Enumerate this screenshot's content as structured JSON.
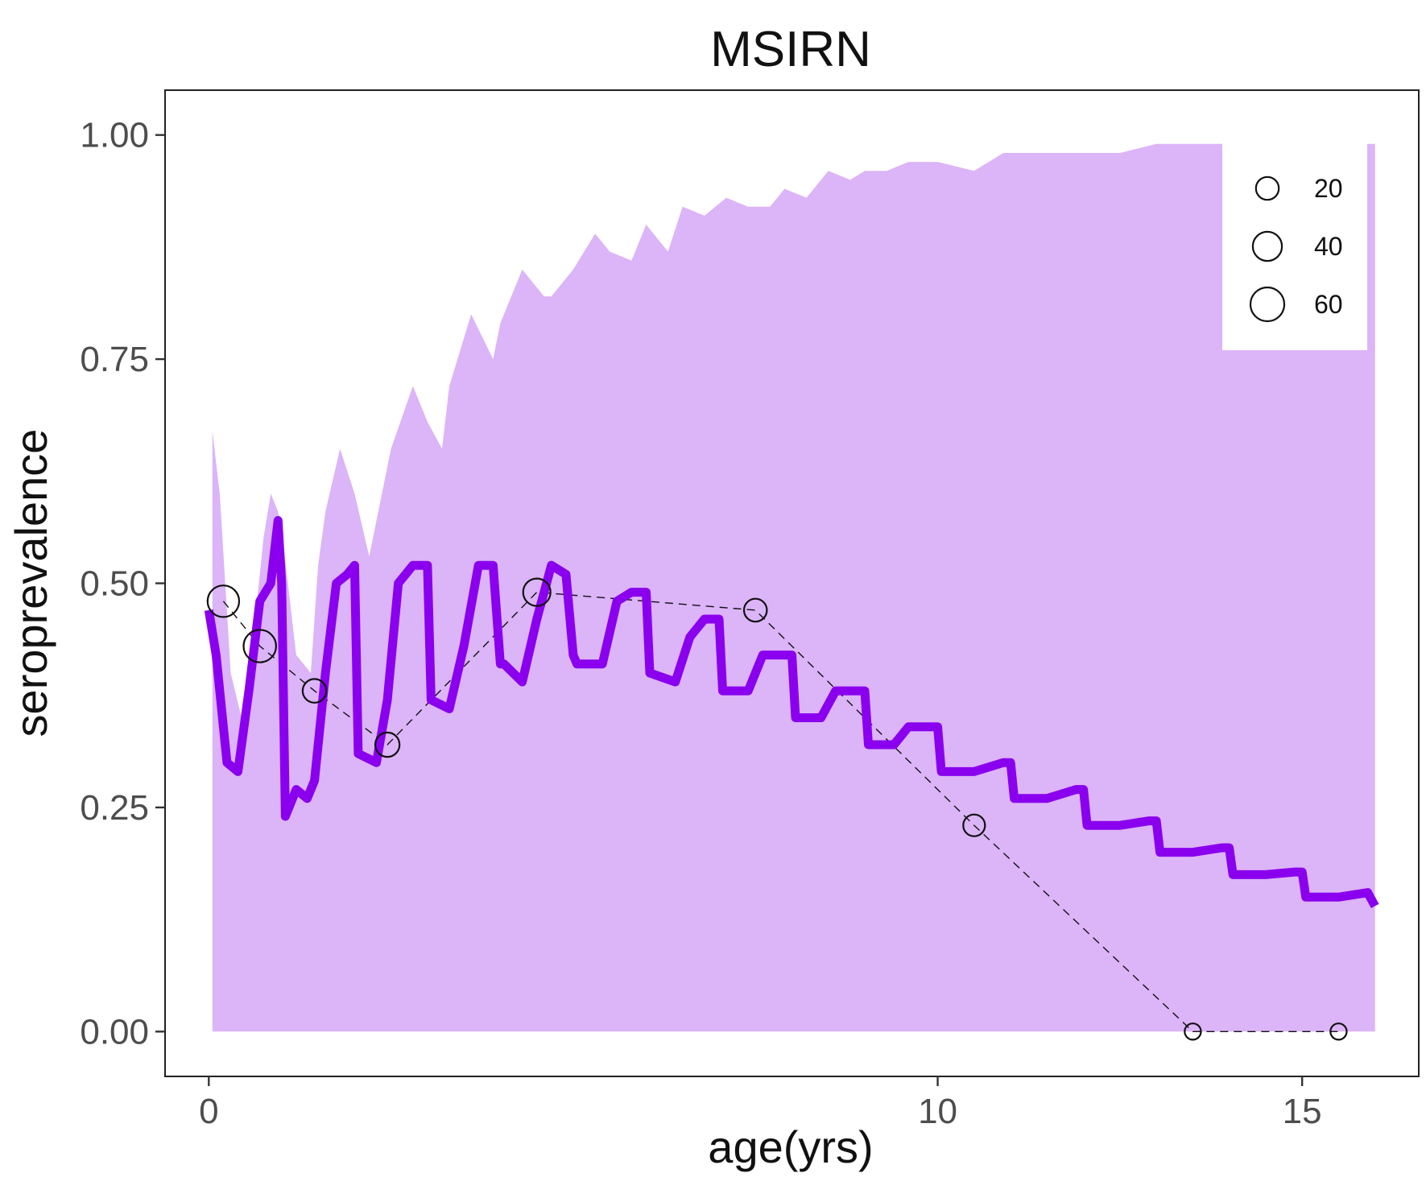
{
  "chart_data": {
    "type": "line",
    "title": "MSIRN",
    "xlabel": "age(yrs)",
    "ylabel": "seroprevalence",
    "xlim": [
      -0.6,
      16.6
    ],
    "ylim": [
      -0.05,
      1.05
    ],
    "x_ticks": [
      0,
      10,
      15
    ],
    "x_tick_labels": [
      "0",
      "10",
      "15"
    ],
    "y_ticks": [
      0,
      0.25,
      0.5,
      0.75,
      1.0
    ],
    "y_tick_labels": [
      "0.00",
      "0.25",
      "0.50",
      "0.75",
      "1.00"
    ],
    "grid": false,
    "legend": {
      "placement": "top-right",
      "entries": [
        {
          "label": "20",
          "size": 20
        },
        {
          "label": "40",
          "size": 40
        },
        {
          "label": "60",
          "size": 60
        }
      ]
    },
    "colors": {
      "model_line": "#8a00ee",
      "ribbon": "#dcb4f8",
      "points": "#111111"
    },
    "series": [
      {
        "role": "ribbon",
        "x": [
          0.05,
          0.15,
          0.3,
          0.45,
          0.6,
          0.75,
          0.85,
          0.95,
          1.0,
          1.2,
          1.4,
          1.5,
          1.6,
          1.8,
          2.0,
          2.2,
          2.45,
          2.5,
          2.8,
          3.0,
          3.2,
          3.3,
          3.6,
          3.9,
          4.0,
          4.3,
          4.6,
          4.7,
          5.0,
          5.3,
          5.5,
          5.8,
          6.0,
          6.3,
          6.5,
          6.8,
          7.1,
          7.4,
          7.7,
          7.9,
          8.2,
          8.5,
          8.8,
          9.0,
          9.3,
          9.6,
          9.8,
          10.0,
          10.5,
          10.9,
          11.5,
          12.0,
          12.5,
          13.0,
          14.0,
          14.8,
          15.0,
          16.0
        ],
        "upper": [
          0.67,
          0.6,
          0.4,
          0.35,
          0.43,
          0.55,
          0.6,
          0.58,
          0.56,
          0.42,
          0.4,
          0.52,
          0.58,
          0.65,
          0.6,
          0.53,
          0.63,
          0.65,
          0.72,
          0.68,
          0.65,
          0.72,
          0.8,
          0.75,
          0.79,
          0.85,
          0.82,
          0.82,
          0.85,
          0.89,
          0.87,
          0.86,
          0.9,
          0.87,
          0.92,
          0.91,
          0.93,
          0.92,
          0.92,
          0.94,
          0.93,
          0.96,
          0.95,
          0.96,
          0.96,
          0.97,
          0.97,
          0.97,
          0.96,
          0.98,
          0.98,
          0.98,
          0.98,
          0.99,
          0.99,
          0.98,
          0.99,
          0.99
        ],
        "lower": [
          0.0,
          0.0,
          0.0,
          0.0,
          0.0,
          0.0,
          0.0,
          0.0,
          0.0,
          0.0,
          0.0,
          0.0,
          0.0,
          0.0,
          0.0,
          0.0,
          0.0,
          0.0,
          0.0,
          0.0,
          0.0,
          0.0,
          0.0,
          0.0,
          0.0,
          0.0,
          0.0,
          0.0,
          0.0,
          0.0,
          0.0,
          0.0,
          0.0,
          0.0,
          0.0,
          0.0,
          0.0,
          0.0,
          0.0,
          0.0,
          0.0,
          0.0,
          0.0,
          0.0,
          0.0,
          0.0,
          0.0,
          0.0,
          0.0,
          0.0,
          0.0,
          0.0,
          0.0,
          0.0,
          0.0,
          0.0,
          0.0,
          0.0
        ]
      },
      {
        "role": "model",
        "x": [
          0.0,
          0.1,
          0.25,
          0.4,
          0.55,
          0.7,
          0.85,
          0.95,
          1.0,
          1.05,
          1.2,
          1.35,
          1.45,
          1.6,
          1.75,
          1.9,
          2.0,
          2.05,
          2.3,
          2.45,
          2.6,
          2.8,
          3.0,
          3.05,
          3.3,
          3.5,
          3.7,
          3.9,
          4.0,
          4.05,
          4.3,
          4.5,
          4.7,
          4.9,
          5.0,
          5.05,
          5.4,
          5.6,
          5.8,
          6.0,
          6.05,
          6.4,
          6.6,
          6.8,
          7.0,
          7.05,
          7.4,
          7.6,
          7.8,
          8.0,
          8.05,
          8.4,
          8.6,
          8.8,
          9.0,
          9.05,
          9.4,
          9.6,
          9.8,
          10.0,
          10.05,
          10.5,
          10.9,
          11.0,
          11.05,
          11.5,
          11.9,
          12.0,
          12.05,
          12.5,
          12.9,
          13.0,
          13.05,
          13.5,
          13.9,
          14.0,
          14.05,
          14.5,
          14.9,
          15.0,
          15.05,
          15.5,
          15.9,
          16.0
        ],
        "y": [
          0.47,
          0.42,
          0.3,
          0.29,
          0.38,
          0.48,
          0.5,
          0.57,
          0.5,
          0.24,
          0.27,
          0.26,
          0.28,
          0.4,
          0.5,
          0.51,
          0.52,
          0.31,
          0.3,
          0.37,
          0.5,
          0.52,
          0.52,
          0.37,
          0.36,
          0.43,
          0.52,
          0.52,
          0.41,
          0.41,
          0.39,
          0.46,
          0.52,
          0.51,
          0.42,
          0.41,
          0.41,
          0.48,
          0.49,
          0.49,
          0.4,
          0.39,
          0.44,
          0.46,
          0.46,
          0.38,
          0.38,
          0.42,
          0.42,
          0.42,
          0.35,
          0.35,
          0.38,
          0.38,
          0.38,
          0.32,
          0.32,
          0.34,
          0.34,
          0.34,
          0.29,
          0.29,
          0.3,
          0.3,
          0.26,
          0.26,
          0.27,
          0.27,
          0.23,
          0.23,
          0.235,
          0.235,
          0.2,
          0.2,
          0.205,
          0.205,
          0.175,
          0.175,
          0.178,
          0.178,
          0.15,
          0.15,
          0.155,
          0.14
        ]
      },
      {
        "role": "observed",
        "x": [
          0.2,
          0.7,
          1.45,
          2.45,
          4.5,
          7.5,
          10.5,
          13.5,
          15.5
        ],
        "y": [
          0.48,
          0.43,
          0.38,
          0.32,
          0.49,
          0.47,
          0.23,
          0.0,
          0.0
        ],
        "n": [
          50,
          54,
          22,
          24,
          34,
          20,
          17,
          6,
          6
        ]
      }
    ]
  }
}
